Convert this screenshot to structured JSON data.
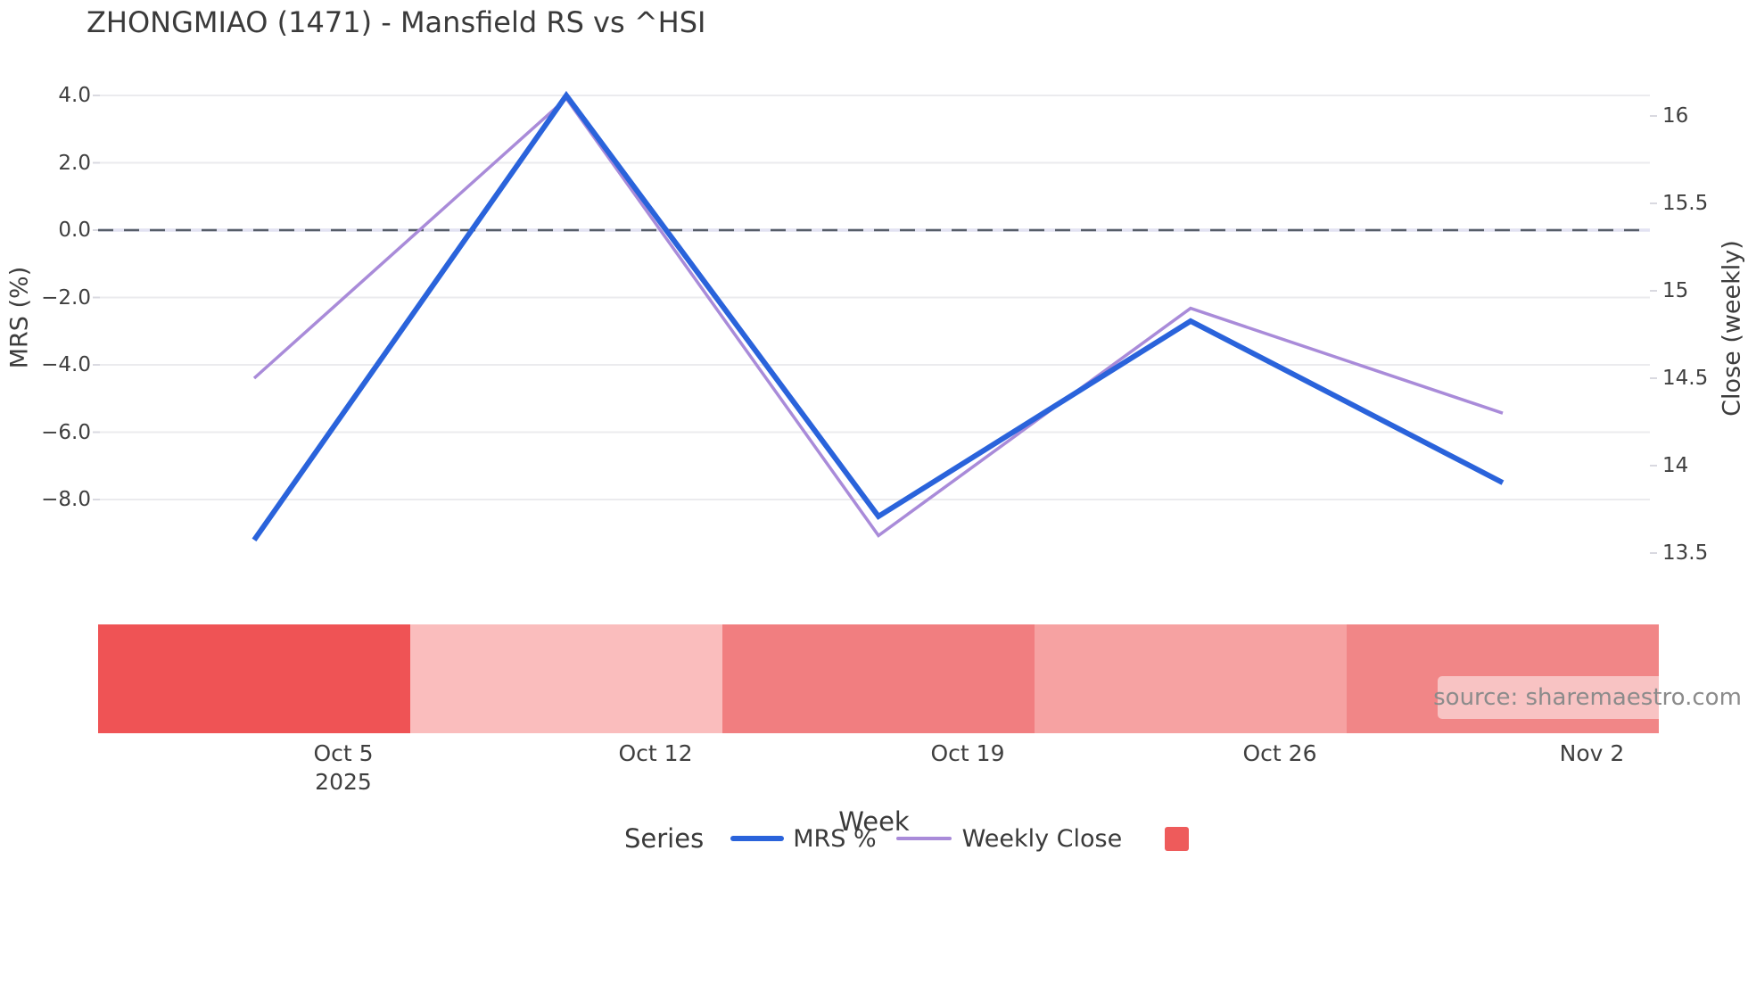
{
  "title": "ZHONGMIAO (1471) - Mansfield RS vs ^HSI",
  "watermark": "source: sharemaestro.com",
  "axes": {
    "x": {
      "title": "Week"
    },
    "left": {
      "title": "MRS (%)"
    },
    "right": {
      "title": "Close (weekly)"
    }
  },
  "legend": {
    "title": "Series",
    "items": [
      {
        "label": "MRS %",
        "swatch": "line",
        "color": "#2a63db"
      },
      {
        "label": "Weekly Close",
        "swatch": "line",
        "color": "#a98bd9"
      },
      {
        "label": "",
        "swatch": "square",
        "color": "#ee5b5b"
      }
    ]
  },
  "chart_data": {
    "type": "line",
    "title": "ZHONGMIAO (1471) - Mansfield RS vs ^HSI",
    "xlabel": "Week",
    "x_ticks": [
      {
        "label": "Oct 5",
        "sub": "2025"
      },
      {
        "label": "Oct 12",
        "sub": ""
      },
      {
        "label": "Oct 19",
        "sub": ""
      },
      {
        "label": "Oct 26",
        "sub": ""
      },
      {
        "label": "Nov 2",
        "sub": ""
      }
    ],
    "series": [
      {
        "name": "MRS %",
        "axis": "left",
        "color": "#2a63db",
        "width": 6,
        "values": [
          -9.2,
          4.0,
          -8.5,
          -2.7,
          -7.5
        ]
      },
      {
        "name": "Weekly Close",
        "axis": "right",
        "color": "#a98bd9",
        "width": 3.5,
        "values": [
          14.5,
          16.1,
          13.6,
          14.9,
          14.3
        ]
      }
    ],
    "left_axis": {
      "label": "MRS (%)",
      "ticks": [
        4.0,
        2.0,
        0.0,
        -2.0,
        -4.0,
        -6.0,
        -8.0
      ],
      "tick_labels": [
        "4.0",
        "2.0",
        "0.0",
        "−2.0",
        "−4.0",
        "−6.0",
        "−8.0"
      ],
      "ylim": [
        -9.8,
        4.6
      ]
    },
    "right_axis": {
      "label": "Close (weekly)",
      "ticks": [
        16,
        15.5,
        15,
        14.5,
        14,
        13.5
      ],
      "tick_labels": [
        "16",
        "15.5",
        "15",
        "14.5",
        "14",
        "13.5"
      ],
      "ylim": [
        13.35,
        16.3
      ]
    },
    "zero_line": {
      "value": 0.0,
      "style": "dashed",
      "dash_color": "#565d68",
      "base_color": "#e2e2f2"
    },
    "heat_band": {
      "colors": [
        "#ef5355",
        "#fabdbd",
        "#f17e80",
        "#f6a2a2",
        "#f18687"
      ]
    },
    "grid": "horizontal-only",
    "gridline_color": "#ebebee",
    "legend_position": "bottom"
  }
}
